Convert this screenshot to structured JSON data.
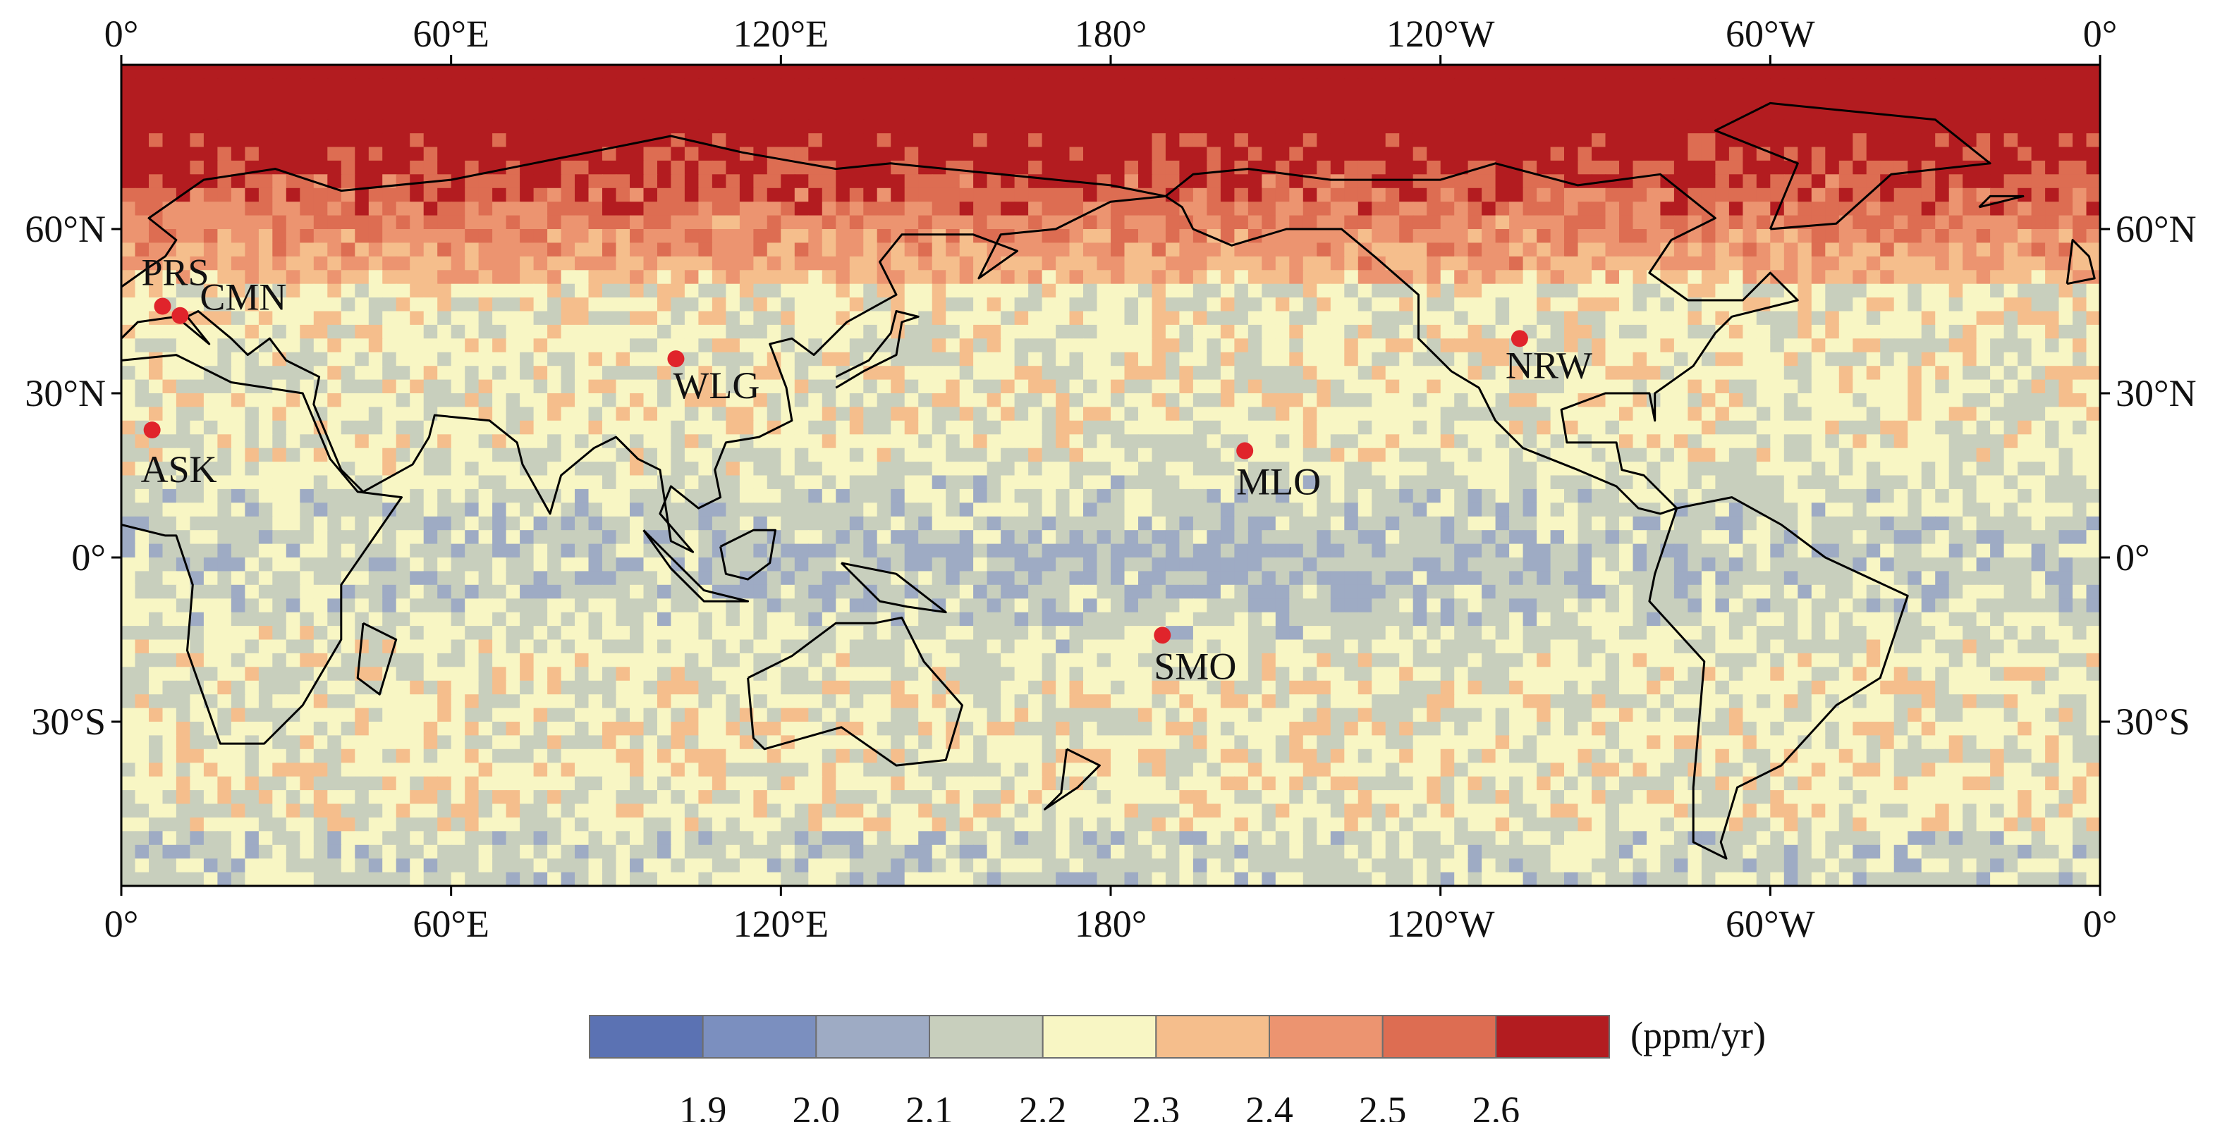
{
  "map": {
    "projection": "equirectangular",
    "lon_range": [
      0,
      360
    ],
    "lat_range": [
      -60,
      90
    ],
    "top_ticks": [
      {
        "lon": 0,
        "label": "0°"
      },
      {
        "lon": 60,
        "label": "60°E"
      },
      {
        "lon": 120,
        "label": "120°E"
      },
      {
        "lon": 180,
        "label": "180°"
      },
      {
        "lon": 240,
        "label": "120°W"
      },
      {
        "lon": 300,
        "label": "60°W"
      },
      {
        "lon": 360,
        "label": "0°"
      }
    ],
    "bottom_ticks": [
      {
        "lon": 0,
        "label": "0°"
      },
      {
        "lon": 60,
        "label": "60°E"
      },
      {
        "lon": 120,
        "label": "120°E"
      },
      {
        "lon": 180,
        "label": "180°"
      },
      {
        "lon": 240,
        "label": "120°W"
      },
      {
        "lon": 300,
        "label": "60°W"
      },
      {
        "lon": 360,
        "label": "0°"
      }
    ],
    "lat_ticks": [
      {
        "lat": 60,
        "label": "60°N"
      },
      {
        "lat": 30,
        "label": "30°N"
      },
      {
        "lat": 0,
        "label": "0°"
      },
      {
        "lat": -30,
        "label": "30°S"
      }
    ],
    "stations": [
      {
        "name": "PRS",
        "lon": 7.5,
        "lat": 45.9
      },
      {
        "name": "CMN",
        "lon": 10.7,
        "lat": 44.2
      },
      {
        "name": "WLG",
        "lon": 100.9,
        "lat": 36.3
      },
      {
        "name": "ASK",
        "lon": 5.6,
        "lat": 23.3
      },
      {
        "name": "NRW",
        "lon": 254.4,
        "lat": 40.0
      },
      {
        "name": "MLO",
        "lon": 204.4,
        "lat": 19.5
      },
      {
        "name": "SMO",
        "lon": 189.4,
        "lat": -14.2
      }
    ],
    "station_color": "#e0242b"
  },
  "colorbar": {
    "unit": "(ppm/yr)",
    "colors": [
      "#5b72b3",
      "#7b8fbf",
      "#9eabc4",
      "#c8cfbd",
      "#f8f6c4",
      "#f5be8c",
      "#ec9470",
      "#dd6d52",
      "#b31c20"
    ],
    "tick_labels": [
      "1.9",
      "2.0",
      "2.1",
      "2.2",
      "2.3",
      "2.4",
      "2.5",
      "2.6"
    ]
  }
}
